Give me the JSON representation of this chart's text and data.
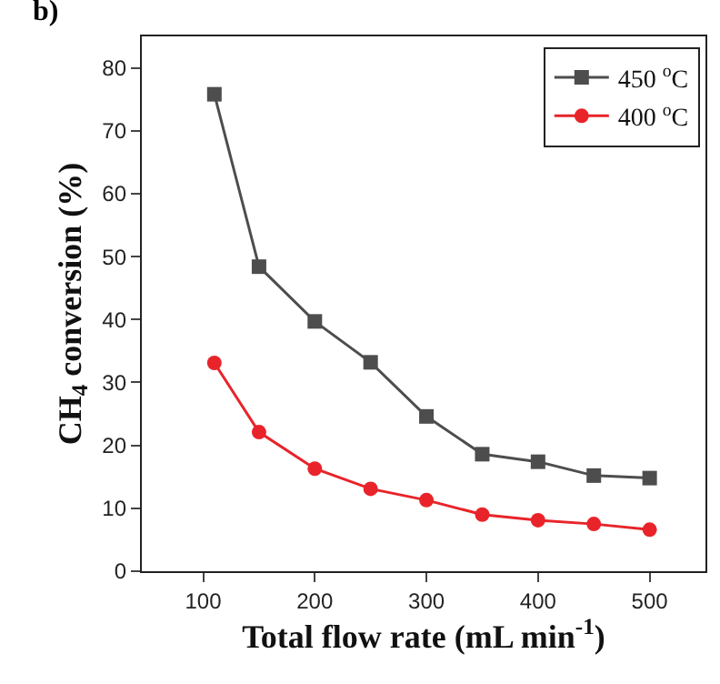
{
  "chart_data": {
    "type": "line",
    "annotations": [
      "b)"
    ],
    "xlabel": "Total flow rate (mL min$^{-1}$)",
    "ylabel": "CH$_{4}$ conversion (%)",
    "x": [
      110,
      150,
      200,
      250,
      300,
      350,
      400,
      450,
      500
    ],
    "series": [
      {
        "name": "450 $^{o}$C",
        "color": "#4d4d4d",
        "marker": "square",
        "values": [
          75.8,
          48.4,
          39.7,
          33.2,
          24.6,
          18.6,
          17.4,
          15.2,
          14.8
        ]
      },
      {
        "name": "400 $^{o}$C",
        "color": "#e8242a",
        "marker": "circle",
        "values": [
          33.1,
          22.1,
          16.3,
          13.1,
          11.3,
          9.0,
          8.1,
          7.5,
          6.6
        ]
      }
    ],
    "xlim": [
      45,
      550
    ],
    "xticks": [
      100,
      200,
      300,
      400,
      500
    ],
    "ylim": [
      0,
      85
    ],
    "yticks": [
      0,
      10,
      20,
      30,
      40,
      50,
      60,
      70,
      80
    ],
    "legend": "top right",
    "line_style": "solid"
  }
}
